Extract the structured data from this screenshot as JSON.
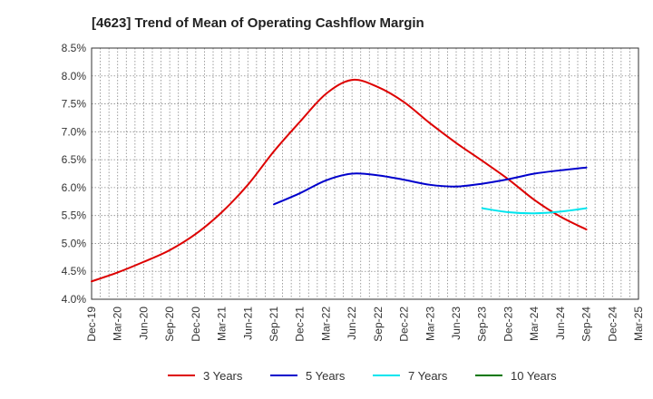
{
  "chart_data": {
    "type": "line",
    "title": "[4623]  Trend of Mean of Operating Cashflow Margin",
    "xlabel": "",
    "ylabel": "",
    "ylim": [
      4.0,
      8.5
    ],
    "y_ticks": [
      "4.0%",
      "4.5%",
      "5.0%",
      "5.5%",
      "6.0%",
      "6.5%",
      "7.0%",
      "7.5%",
      "8.0%",
      "8.5%"
    ],
    "y_tick_values": [
      4.0,
      4.5,
      5.0,
      5.5,
      6.0,
      6.5,
      7.0,
      7.5,
      8.0,
      8.5
    ],
    "categories": [
      "Dec-19",
      "Mar-20",
      "Jun-20",
      "Sep-20",
      "Dec-20",
      "Mar-21",
      "Jun-21",
      "Sep-21",
      "Dec-21",
      "Mar-22",
      "Jun-22",
      "Sep-22",
      "Dec-22",
      "Mar-23",
      "Jun-23",
      "Sep-23",
      "Dec-23",
      "Mar-24",
      "Jun-24",
      "Sep-24",
      "Dec-24",
      "Mar-25"
    ],
    "grid": true,
    "legend_position": "bottom",
    "series": [
      {
        "name": "3 Years",
        "color": "#dd0000",
        "values": [
          4.32,
          4.48,
          4.67,
          4.88,
          5.17,
          5.56,
          6.05,
          6.65,
          7.18,
          7.68,
          7.93,
          7.8,
          7.53,
          7.15,
          6.8,
          6.48,
          6.15,
          5.78,
          5.48,
          5.25,
          null,
          null
        ]
      },
      {
        "name": "5 Years",
        "color": "#0000cc",
        "values": [
          null,
          null,
          null,
          null,
          null,
          null,
          null,
          5.7,
          5.9,
          6.13,
          6.25,
          6.22,
          6.14,
          6.05,
          6.02,
          6.07,
          6.15,
          6.25,
          6.31,
          6.36,
          null,
          null
        ]
      },
      {
        "name": "7 Years",
        "color": "#00e5ee",
        "values": [
          null,
          null,
          null,
          null,
          null,
          null,
          null,
          null,
          null,
          null,
          null,
          null,
          null,
          null,
          null,
          5.63,
          5.56,
          5.54,
          5.57,
          5.63,
          null,
          null
        ]
      },
      {
        "name": "10 Years",
        "color": "#007700",
        "values": [
          null,
          null,
          null,
          null,
          null,
          null,
          null,
          null,
          null,
          null,
          null,
          null,
          null,
          null,
          null,
          null,
          null,
          null,
          null,
          null,
          null,
          null
        ]
      }
    ]
  }
}
